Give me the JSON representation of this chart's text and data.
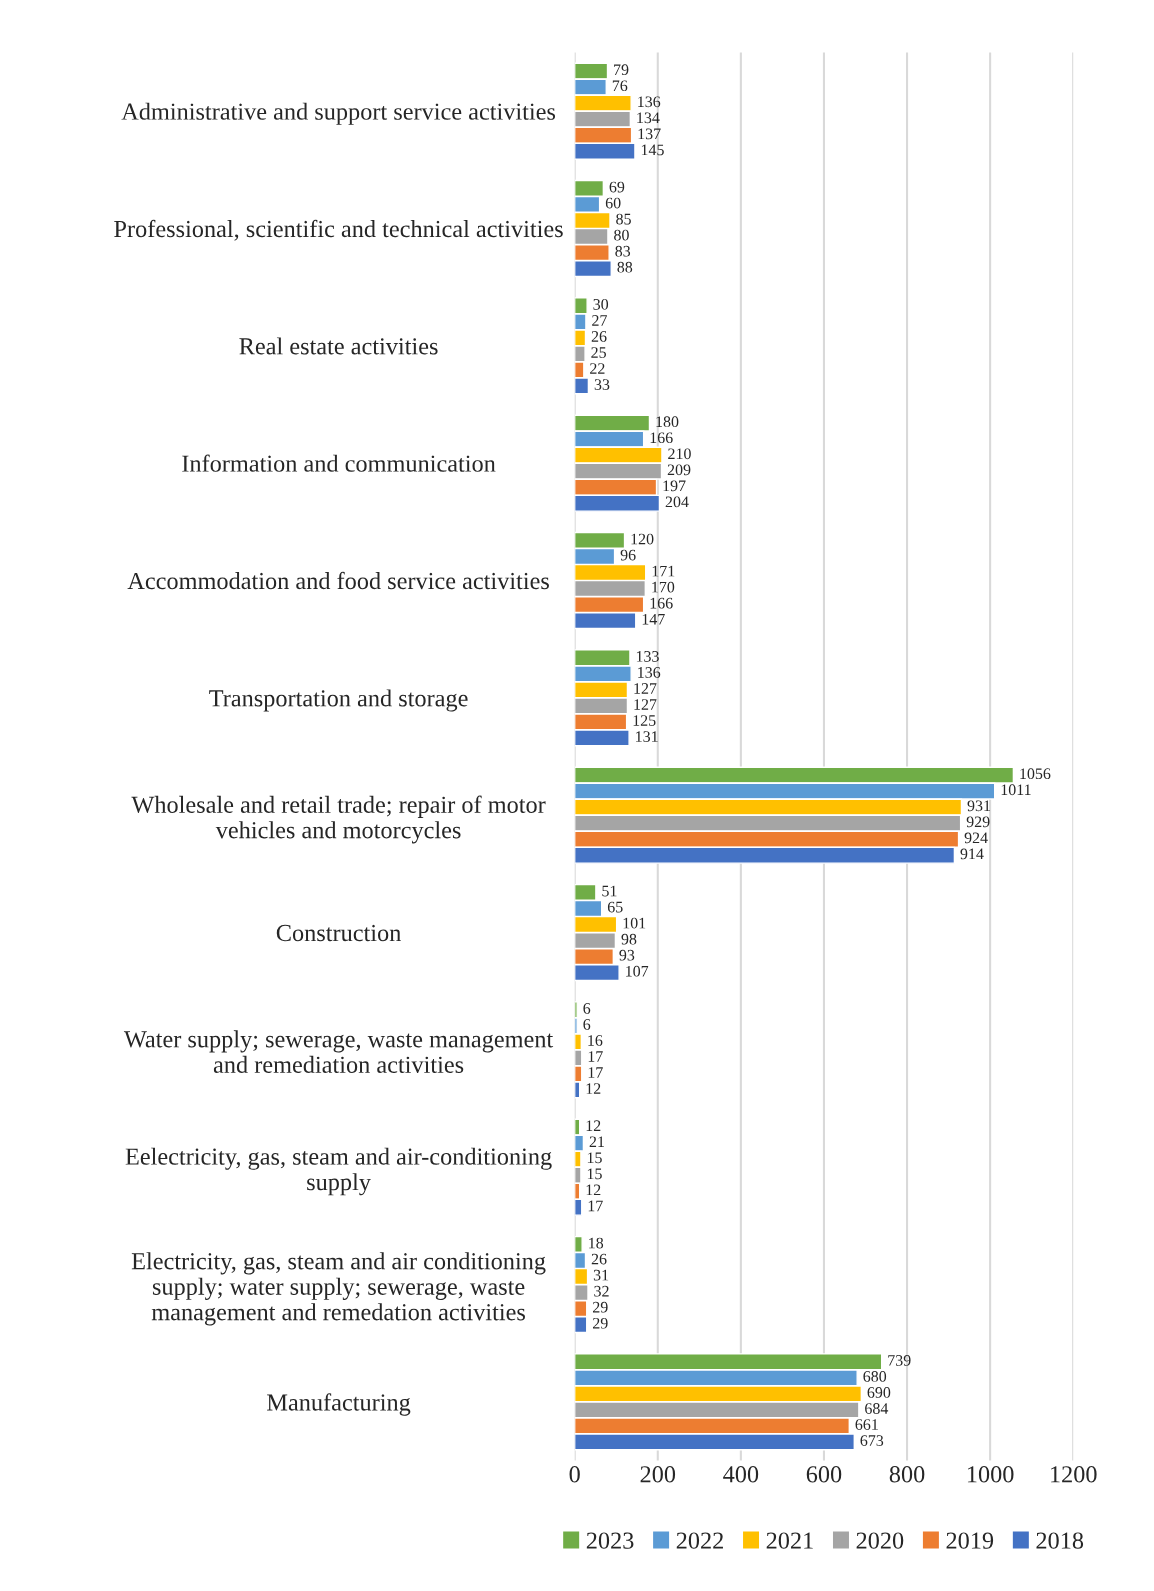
{
  "chart_data": {
    "type": "bar",
    "orientation": "horizontal",
    "categories": [
      "Administrative and support service activities",
      "Professional, scientific and technical activities",
      "Real estate activities",
      "Information and communication",
      "Accommodation and food service activities",
      "Transportation and storage",
      "Wholesale and retail trade; repair of motor\nvehicles and motorcycles",
      "Construction",
      "Water supply; sewerage, waste management\nand remediation activities",
      "Eelectricity, gas, steam and air-conditioning\nsupply",
      "Electricity, gas, steam and air conditioning\nsupply; water supply; sewerage, waste\nmanagement and remedation activities",
      "Manufacturing"
    ],
    "series": [
      {
        "name": "2023",
        "color": "#70ad47",
        "values": [
          79,
          69,
          30,
          180,
          120,
          133,
          1056,
          51,
          6,
          12,
          18,
          739
        ]
      },
      {
        "name": "2022",
        "color": "#5b9bd5",
        "values": [
          76,
          60,
          27,
          166,
          96,
          136,
          1011,
          65,
          6,
          21,
          26,
          680
        ]
      },
      {
        "name": "2021",
        "color": "#ffc000",
        "values": [
          136,
          85,
          26,
          210,
          171,
          127,
          931,
          101,
          16,
          15,
          31,
          690
        ]
      },
      {
        "name": "2020",
        "color": "#a5a5a5",
        "values": [
          134,
          80,
          25,
          209,
          170,
          127,
          929,
          98,
          17,
          15,
          32,
          684
        ]
      },
      {
        "name": "2019",
        "color": "#ed7d31",
        "values": [
          137,
          83,
          22,
          197,
          166,
          125,
          924,
          93,
          17,
          12,
          29,
          661
        ]
      },
      {
        "name": "2018",
        "color": "#4472c4",
        "values": [
          145,
          88,
          33,
          204,
          147,
          131,
          914,
          107,
          12,
          17,
          29,
          673
        ]
      }
    ],
    "xlim": [
      0,
      1200
    ],
    "xticks": [
      0,
      200,
      400,
      600,
      800,
      1000,
      1200
    ],
    "grid": "x",
    "legend": "bottom",
    "data_labels": true
  }
}
